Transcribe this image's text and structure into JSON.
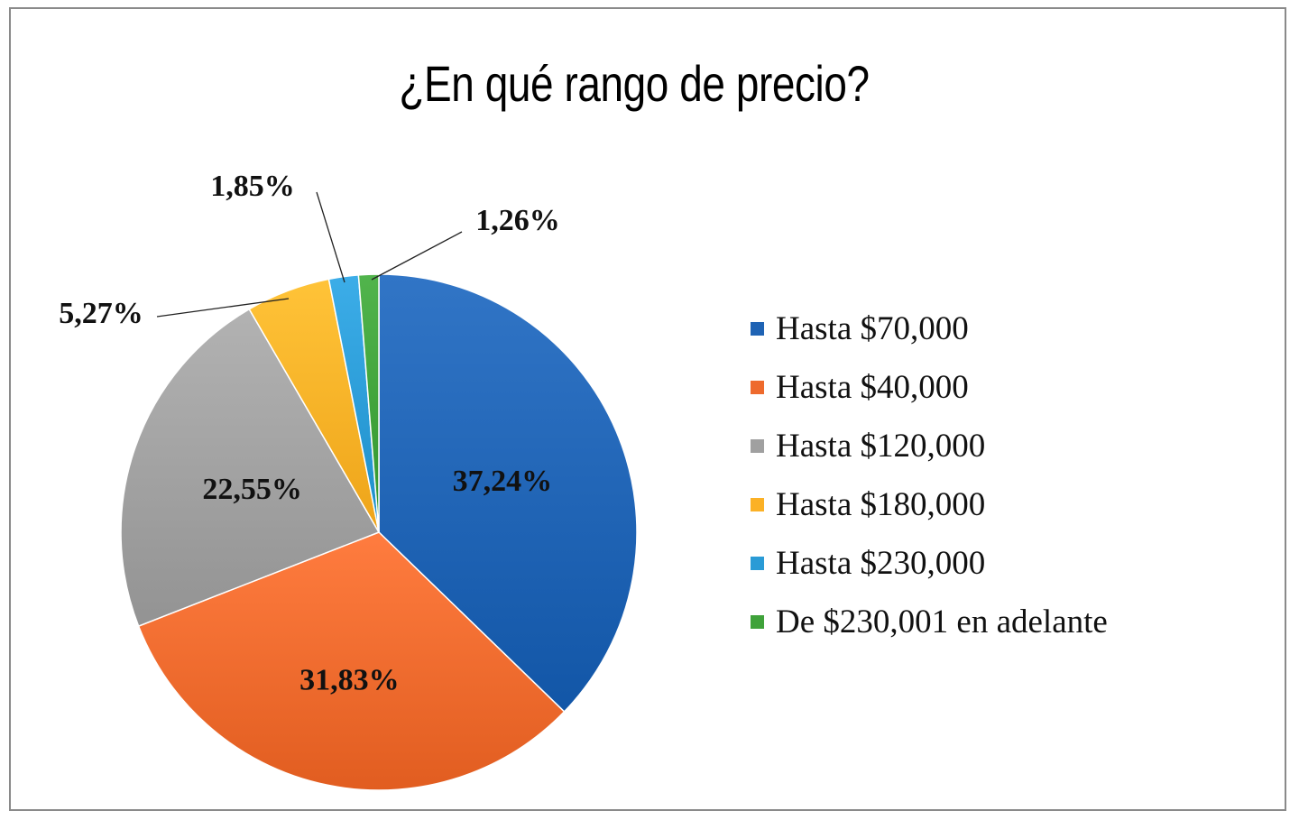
{
  "chart_data": {
    "type": "pie",
    "title": "¿En qué rango de precio?",
    "categories": [
      "Hasta $70,000",
      "Hasta $40,000",
      "Hasta $120,000",
      "Hasta $180,000",
      "Hasta $230,000",
      "De $230,001 en adelante"
    ],
    "values": [
      37.24,
      31.83,
      22.55,
      5.27,
      1.85,
      1.26
    ],
    "data_labels": [
      "37,24%",
      "31,83%",
      "22,55%",
      "5,27%",
      "1,85%",
      "1,26%"
    ],
    "colors": [
      "#1f63b4",
      "#ee6a2d",
      "#a0a0a0",
      "#fbb126",
      "#2a9bd6",
      "#3fa23a"
    ],
    "legend_position": "right"
  }
}
